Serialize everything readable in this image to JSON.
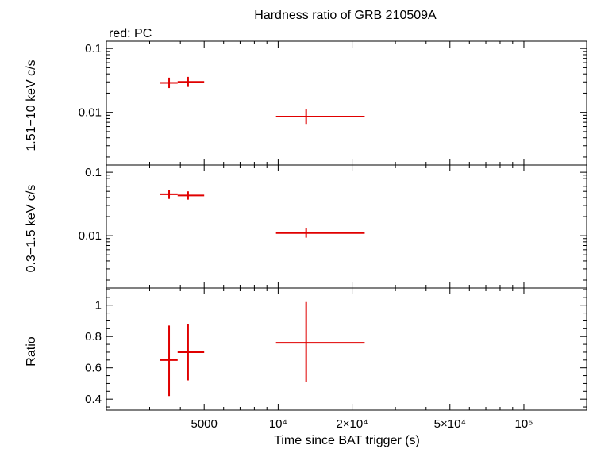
{
  "chart_data": {
    "type": "scatter",
    "title": "Hardness ratio of GRB 210509A",
    "legend_note": "red: PC",
    "xlabel": "Time since BAT trigger (s)",
    "x_scale": "log",
    "xlim": [
      2000,
      180000
    ],
    "x_ticks": [
      {
        "value": 5000,
        "label": "5000"
      },
      {
        "value": 10000,
        "label": "10⁴"
      },
      {
        "value": 20000,
        "label": "2×10⁴"
      },
      {
        "value": 50000,
        "label": "5×10⁴"
      },
      {
        "value": 100000,
        "label": "10⁵"
      }
    ],
    "panels": [
      {
        "id": "hard",
        "ylabel": "1.51−10 keV c/s",
        "y_scale": "log",
        "ylim": [
          0.0015,
          0.13
        ],
        "y_ticks": [
          {
            "value": 0.1,
            "label": "0.1"
          },
          {
            "value": 0.01,
            "label": "0.01"
          }
        ],
        "color": "#e00000",
        "points": [
          {
            "x": 3600,
            "x_lo": 3300,
            "x_hi": 3900,
            "y": 0.029,
            "y_lo": 0.024,
            "y_hi": 0.035
          },
          {
            "x": 4300,
            "x_lo": 3900,
            "x_hi": 5000,
            "y": 0.03,
            "y_lo": 0.025,
            "y_hi": 0.036
          },
          {
            "x": 13000,
            "x_lo": 9800,
            "x_hi": 22500,
            "y": 0.0086,
            "y_lo": 0.0066,
            "y_hi": 0.0111
          }
        ]
      },
      {
        "id": "soft",
        "ylabel": "0.3−1.5 keV c/s",
        "y_scale": "log",
        "ylim": [
          0.0015,
          0.13
        ],
        "y_ticks": [
          {
            "value": 0.1,
            "label": "0.1"
          },
          {
            "value": 0.01,
            "label": "0.01"
          }
        ],
        "color": "#e00000",
        "points": [
          {
            "x": 3600,
            "x_lo": 3300,
            "x_hi": 3900,
            "y": 0.045,
            "y_lo": 0.038,
            "y_hi": 0.053
          },
          {
            "x": 4300,
            "x_lo": 3900,
            "x_hi": 5000,
            "y": 0.043,
            "y_lo": 0.037,
            "y_hi": 0.05
          },
          {
            "x": 13000,
            "x_lo": 9800,
            "x_hi": 22500,
            "y": 0.011,
            "y_lo": 0.0093,
            "y_hi": 0.0132
          }
        ]
      },
      {
        "id": "ratio",
        "ylabel": "Ratio",
        "y_scale": "linear",
        "ylim": [
          0.33,
          1.11
        ],
        "y_ticks": [
          {
            "value": 0.4,
            "label": "0.4"
          },
          {
            "value": 0.6,
            "label": "0.6"
          },
          {
            "value": 0.8,
            "label": "0.8"
          },
          {
            "value": 1,
            "label": "1"
          }
        ],
        "color": "#e00000",
        "points": [
          {
            "x": 3600,
            "x_lo": 3300,
            "x_hi": 3900,
            "y": 0.65,
            "y_lo": 0.42,
            "y_hi": 0.87
          },
          {
            "x": 4300,
            "x_lo": 3900,
            "x_hi": 5000,
            "y": 0.7,
            "y_lo": 0.52,
            "y_hi": 0.88
          },
          {
            "x": 13000,
            "x_lo": 9800,
            "x_hi": 22500,
            "y": 0.76,
            "y_lo": 0.51,
            "y_hi": 1.02
          }
        ]
      }
    ]
  }
}
